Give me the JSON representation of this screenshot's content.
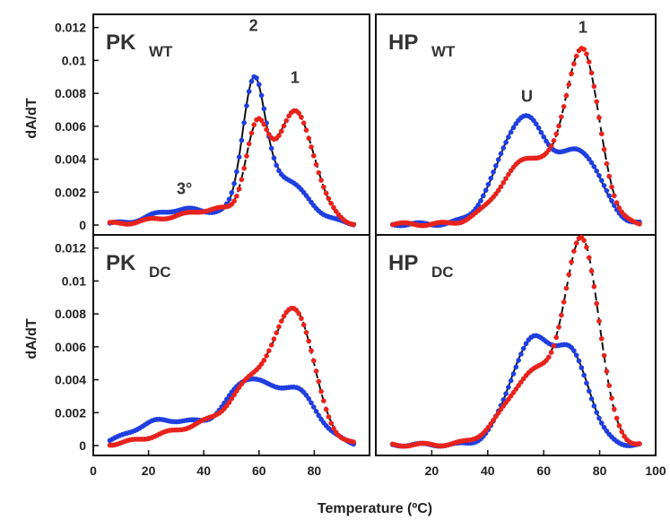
{
  "chart_data": {
    "type": "scatter",
    "xlabel": "Temperature (ºC)",
    "ylabel": "dA/dT",
    "xlim": [
      0,
      100
    ],
    "ylim": [
      -0.0006,
      0.0128
    ],
    "x_ticks_left": [
      "0",
      "20",
      "40",
      "60",
      "80"
    ],
    "x_ticks_right": [
      "20",
      "40",
      "60",
      "80",
      "100"
    ],
    "y_ticks": [
      "0",
      "0.002",
      "0.004",
      "0.006",
      "0.008",
      "0.01",
      "0.012"
    ],
    "colors": {
      "blue": "#1f3fe0",
      "red": "#e8231c",
      "fit": "#111111"
    },
    "panels": [
      {
        "id": "pk_wt",
        "col": 0,
        "row": 0,
        "title_main": "PK",
        "title_sub": "WT",
        "annotations": [
          {
            "text": "2",
            "x": 58,
            "y": 0.01178
          },
          {
            "text": "1",
            "x": 73,
            "y": 0.00862
          },
          {
            "text": "3°",
            "x": 33,
            "y": 0.00188
          }
        ],
        "blue_peaks": [
          [
            0.0005,
            26,
            8
          ],
          [
            0.0007,
            40,
            10
          ],
          [
            0.0073,
            58,
            4
          ],
          [
            0.0028,
            68,
            9
          ]
        ],
        "red_peaks": [
          [
            0.0004,
            30,
            10
          ],
          [
            0.0008,
            46,
            8
          ],
          [
            0.0051,
            59,
            4
          ],
          [
            0.0068,
            73,
            7
          ]
        ],
        "x_range": [
          6,
          95
        ]
      },
      {
        "id": "hp_wt",
        "col": 1,
        "row": 0,
        "title_main": "HP",
        "title_sub": "WT",
        "annotations": [
          {
            "text": "U",
            "x": 54,
            "y": 0.00748
          },
          {
            "text": "1",
            "x": 74,
            "y": 0.01168
          }
        ],
        "blue_peaks": [
          [
            0.0065,
            53,
            9
          ],
          [
            0.004,
            74,
            7
          ]
        ],
        "red_peaks": [
          [
            0.004,
            55,
            10
          ],
          [
            0.01,
            74,
            6
          ]
        ],
        "x_range": [
          6,
          95
        ]
      },
      {
        "id": "pk_dc",
        "col": 0,
        "row": 1,
        "title_main": "PK",
        "title_sub": "DC",
        "annotations": [],
        "blue_peaks": [
          [
            0.0012,
            22,
            9
          ],
          [
            0.0011,
            40,
            10
          ],
          [
            0.0034,
            56,
            7
          ],
          [
            0.0033,
            73,
            8
          ]
        ],
        "red_peaks": [
          [
            0.0006,
            28,
            10
          ],
          [
            0.0012,
            45,
            9
          ],
          [
            0.0032,
            58,
            7
          ],
          [
            0.008,
            73,
            7
          ]
        ],
        "x_range": [
          6,
          95
        ]
      },
      {
        "id": "hp_dc",
        "col": 1,
        "row": 1,
        "title_main": "HP",
        "title_sub": "DC",
        "annotations": [],
        "blue_peaks": [
          [
            0.0063,
            56,
            8
          ],
          [
            0.0045,
            71,
            6
          ]
        ],
        "red_peaks": [
          [
            0.0044,
            57,
            10
          ],
          [
            0.0115,
            74,
            6
          ]
        ],
        "x_range": [
          6,
          95
        ]
      }
    ]
  }
}
